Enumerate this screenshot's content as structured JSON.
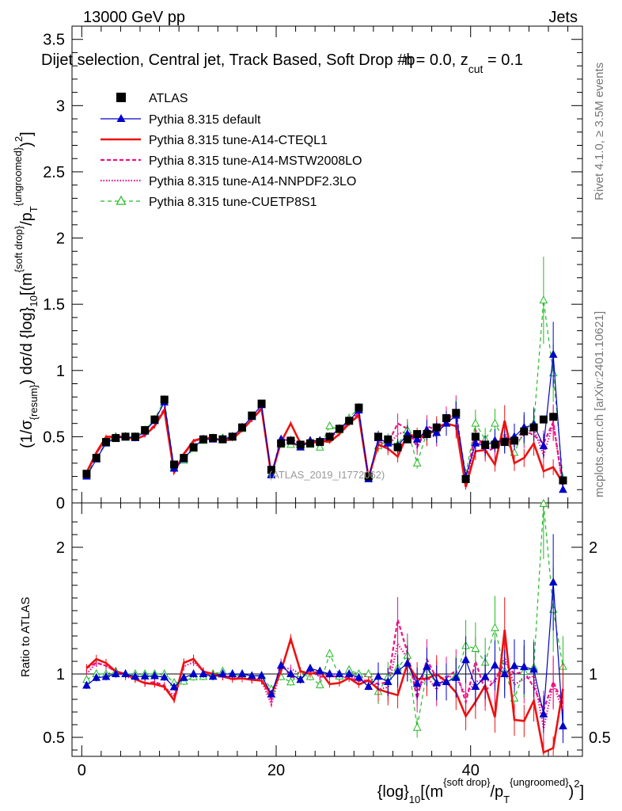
{
  "header": {
    "energy_label": "13000 GeV pp",
    "category": "Jets",
    "rivet_label": "Rivet 4.1.0, ≥ 3.5M events",
    "mcplots_label": "mcplots.cern.ch [arXiv:2401.10621]",
    "analysis_id": "(ATLAS_2019_I1772062)"
  },
  "chart_data": {
    "type": "line",
    "title": "Dijet selection, Central jet, Track Based, Soft Drop #b",
    "title_tail": "= 0.0, z",
    "title_eta": "η",
    "title_cut": "cut",
    "title_end": " = 0.1",
    "xlabel_parts": [
      "{log}",
      "10",
      "[(m",
      "{soft drop}",
      "/p",
      "T",
      "{ungroomed}",
      ")",
      "2",
      "]"
    ],
    "ylabel_parts": [
      "(1/σ",
      "{resum}",
      ") dσ/d {log}",
      "10",
      "[(m",
      "{soft drop}",
      "/p",
      "T",
      "{ungroomed}",
      ")",
      "2",
      "]"
    ],
    "ratio_ylabel": "Ratio to ATLAS",
    "xlim": [
      -1,
      51.5
    ],
    "ylim": [
      0,
      3.6
    ],
    "ratio_ylim": [
      0.35,
      2.35
    ],
    "xticks": [
      0,
      20,
      40
    ],
    "yticks": [
      0,
      0.5,
      1,
      1.5,
      2,
      2.5,
      3,
      3.5
    ],
    "ytick_labels": [
      "0",
      "0.5",
      "1",
      "1.5",
      "2",
      "2.5",
      "3",
      "3.5"
    ],
    "ratio_yticks": [
      0.5,
      1,
      2
    ],
    "ratio_ytick_labels": [
      "0.5",
      "1",
      "2"
    ],
    "x": [
      0.5,
      1.5,
      2.5,
      3.5,
      4.5,
      5.5,
      6.5,
      7.5,
      8.5,
      9.5,
      10.5,
      11.5,
      12.5,
      13.5,
      14.5,
      15.5,
      16.5,
      17.5,
      18.5,
      19.5,
      20.5,
      21.5,
      22.5,
      23.5,
      24.5,
      25.5,
      26.5,
      27.5,
      28.5,
      29.5,
      30.5,
      31.5,
      32.5,
      33.5,
      34.5,
      35.5,
      36.5,
      37.5,
      38.5,
      39.5,
      40.5,
      41.5,
      42.5,
      43.5,
      44.5,
      45.5,
      46.5,
      47.5,
      48.5,
      49.5
    ],
    "data": [
      0.22,
      0.34,
      0.46,
      0.49,
      0.5,
      0.5,
      0.55,
      0.63,
      0.78,
      0.29,
      0.34,
      0.42,
      0.48,
      0.49,
      0.48,
      0.5,
      0.57,
      0.66,
      0.75,
      0.25,
      0.45,
      0.47,
      0.44,
      0.45,
      0.46,
      0.5,
      0.56,
      0.62,
      0.72,
      0.2,
      0.5,
      0.48,
      0.42,
      0.48,
      0.52,
      0.52,
      0.57,
      0.64,
      0.68,
      0.18,
      0.5,
      0.44,
      0.44,
      0.46,
      0.47,
      0.54,
      0.57,
      0.63,
      0.65,
      0.17
    ],
    "series": [
      {
        "name": "ATLAS",
        "color": "#000000",
        "style": "marker"
      },
      {
        "name": "Pythia 8.315 default",
        "color": "#0000cc",
        "style": "solid-triangle",
        "values": [
          0.2,
          0.33,
          0.45,
          0.49,
          0.5,
          0.49,
          0.54,
          0.62,
          0.76,
          0.26,
          0.33,
          0.42,
          0.48,
          0.48,
          0.48,
          0.5,
          0.57,
          0.65,
          0.74,
          0.21,
          0.48,
          0.47,
          0.42,
          0.47,
          0.47,
          0.5,
          0.56,
          0.62,
          0.7,
          0.18,
          0.49,
          0.45,
          0.43,
          0.52,
          0.48,
          0.55,
          0.53,
          0.6,
          0.66,
          0.2,
          0.45,
          0.43,
          0.47,
          0.46,
          0.5,
          0.57,
          0.59,
          0.43,
          1.12,
          0.1
        ]
      },
      {
        "name": "Pythia 8.315 tune-A14-CTEQL1",
        "color": "#ee1111",
        "style": "solid-thick",
        "values": [
          0.23,
          0.38,
          0.5,
          0.5,
          0.5,
          0.48,
          0.51,
          0.58,
          0.7,
          0.23,
          0.37,
          0.47,
          0.49,
          0.49,
          0.47,
          0.48,
          0.55,
          0.63,
          0.71,
          0.21,
          0.46,
          0.6,
          0.45,
          0.45,
          0.47,
          0.46,
          0.52,
          0.6,
          0.66,
          0.19,
          0.44,
          0.41,
          0.35,
          0.52,
          0.5,
          0.5,
          0.57,
          0.6,
          0.58,
          0.12,
          0.39,
          0.4,
          0.29,
          0.62,
          0.3,
          0.34,
          0.45,
          0.24,
          0.27,
          0.15
        ]
      },
      {
        "name": "Pythia 8.315 tune-A14-MSTW2008LO",
        "color": "#ee1188",
        "style": "dashed",
        "values": [
          0.23,
          0.37,
          0.49,
          0.5,
          0.5,
          0.48,
          0.51,
          0.59,
          0.71,
          0.23,
          0.37,
          0.47,
          0.49,
          0.48,
          0.47,
          0.49,
          0.55,
          0.63,
          0.72,
          0.2,
          0.49,
          0.46,
          0.42,
          0.47,
          0.45,
          0.49,
          0.55,
          0.6,
          0.68,
          0.19,
          0.46,
          0.45,
          0.6,
          0.56,
          0.42,
          0.58,
          0.55,
          0.62,
          0.7,
          0.14,
          0.55,
          0.38,
          0.42,
          0.5,
          0.47,
          0.55,
          0.51,
          0.45,
          0.61,
          0.13
        ]
      },
      {
        "name": "Pythia 8.315 tune-A14-NNPDF2.3LO",
        "color": "#ee1188",
        "style": "dotted",
        "values": [
          0.22,
          0.37,
          0.49,
          0.5,
          0.49,
          0.48,
          0.51,
          0.58,
          0.7,
          0.24,
          0.36,
          0.46,
          0.49,
          0.48,
          0.47,
          0.49,
          0.55,
          0.63,
          0.71,
          0.19,
          0.47,
          0.49,
          0.44,
          0.46,
          0.45,
          0.5,
          0.54,
          0.61,
          0.69,
          0.2,
          0.44,
          0.43,
          0.52,
          0.54,
          0.45,
          0.51,
          0.5,
          0.63,
          0.66,
          0.15,
          0.47,
          0.42,
          0.41,
          0.52,
          0.43,
          0.52,
          0.56,
          0.36,
          0.6,
          0.12
        ]
      },
      {
        "name": "Pythia 8.315 tune-CUETP8S1",
        "color": "#22bb22",
        "style": "dashed-open-triangle",
        "values": [
          0.21,
          0.34,
          0.46,
          0.5,
          0.5,
          0.5,
          0.55,
          0.63,
          0.78,
          0.27,
          0.32,
          0.41,
          0.47,
          0.49,
          0.49,
          0.5,
          0.56,
          0.65,
          0.74,
          0.22,
          0.44,
          0.44,
          0.44,
          0.44,
          0.42,
          0.58,
          0.55,
          0.64,
          0.72,
          0.2,
          0.43,
          0.47,
          0.44,
          0.55,
          0.3,
          0.53,
          0.53,
          0.6,
          0.67,
          0.22,
          0.6,
          0.48,
          0.6,
          0.47,
          0.38,
          0.55,
          0.6,
          1.53,
          0.98,
          0.18
        ]
      }
    ]
  }
}
